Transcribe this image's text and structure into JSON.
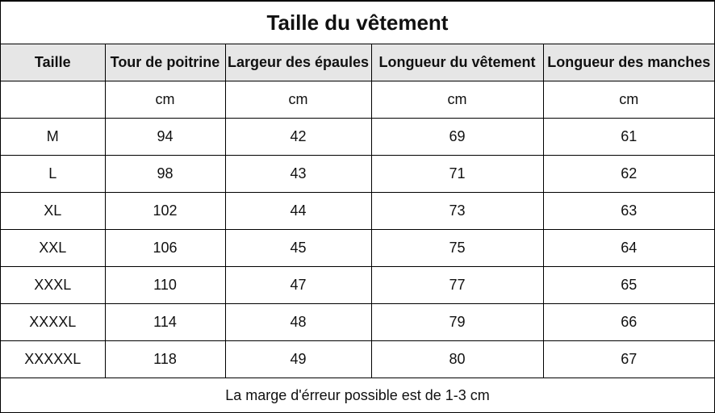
{
  "title": "Taille du vêtement",
  "columns": [
    "Taille",
    "Tour de poitrine",
    "Largeur des épaules",
    "Longueur du vêtement",
    "Longueur des manches"
  ],
  "units": [
    "",
    "cm",
    "cm",
    "cm",
    "cm"
  ],
  "rows": [
    [
      "M",
      "94",
      "42",
      "69",
      "61"
    ],
    [
      "L",
      "98",
      "43",
      "71",
      "62"
    ],
    [
      "XL",
      "102",
      "44",
      "73",
      "63"
    ],
    [
      "XXL",
      "106",
      "45",
      "75",
      "64"
    ],
    [
      "XXXL",
      "110",
      "47",
      "77",
      "65"
    ],
    [
      "XXXXL",
      "114",
      "48",
      "79",
      "66"
    ],
    [
      "XXXXXL",
      "118",
      "49",
      "80",
      "67"
    ]
  ],
  "footer": "La marge d'érreur possible est de 1-3 cm",
  "colors": {
    "header_bg": "#e6e6e6",
    "border": "#000000",
    "text": "#111111"
  }
}
